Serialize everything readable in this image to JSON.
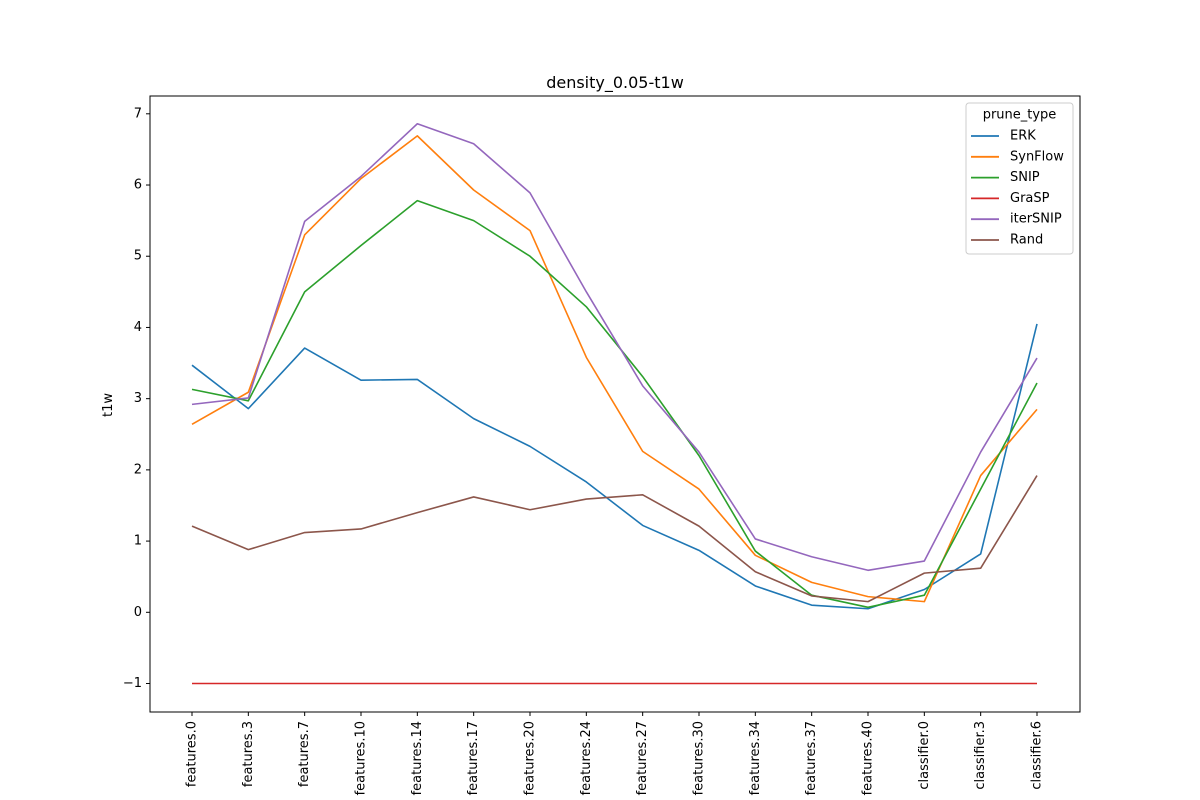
{
  "chart_data": {
    "type": "line",
    "title": "density_0.05-t1w",
    "xlabel": "",
    "ylabel": "t1w",
    "categories": [
      "features.0",
      "features.3",
      "features.7",
      "features.10",
      "features.14",
      "features.17",
      "features.20",
      "features.24",
      "features.27",
      "features.30",
      "features.34",
      "features.37",
      "features.40",
      "classifier.0",
      "classifier.3",
      "classifier.6"
    ],
    "ylim": [
      -1.4,
      7.25
    ],
    "yticks": [
      -1,
      0,
      1,
      2,
      3,
      4,
      5,
      6,
      7
    ],
    "ytick_labels": [
      "−1",
      "0",
      "1",
      "2",
      "3",
      "4",
      "5",
      "6",
      "7"
    ],
    "grid": false,
    "legend": {
      "title": "prune_type",
      "position": "top-right"
    },
    "series": [
      {
        "name": "ERK",
        "color": "#1f77b4",
        "values": [
          3.47,
          2.86,
          3.71,
          3.26,
          3.27,
          2.72,
          2.33,
          1.83,
          1.22,
          0.87,
          0.37,
          0.1,
          0.05,
          0.32,
          0.82,
          4.05
        ]
      },
      {
        "name": "SynFlow",
        "color": "#ff7f0e",
        "values": [
          2.64,
          3.09,
          5.3,
          6.09,
          6.69,
          5.93,
          5.36,
          3.58,
          2.26,
          1.73,
          0.8,
          0.42,
          0.22,
          0.15,
          1.92,
          2.85
        ]
      },
      {
        "name": "SNIP",
        "color": "#2ca02c",
        "values": [
          3.13,
          2.97,
          4.5,
          5.15,
          5.78,
          5.5,
          5.0,
          4.29,
          3.31,
          2.2,
          0.86,
          0.24,
          0.07,
          0.24,
          1.73,
          3.22
        ]
      },
      {
        "name": "GraSP",
        "color": "#d62728",
        "values": [
          -1,
          -1,
          -1,
          -1,
          -1,
          -1,
          -1,
          -1,
          -1,
          -1,
          -1,
          -1,
          -1,
          -1,
          -1,
          -1
        ]
      },
      {
        "name": "iterSNIP",
        "color": "#9467bd",
        "values": [
          2.92,
          3.01,
          5.49,
          6.12,
          6.86,
          6.58,
          5.89,
          4.5,
          3.18,
          2.25,
          1.03,
          0.78,
          0.59,
          0.72,
          2.25,
          3.57
        ]
      },
      {
        "name": "Rand",
        "color": "#8c564b",
        "values": [
          1.21,
          0.88,
          1.12,
          1.17,
          1.4,
          1.62,
          1.44,
          1.59,
          1.65,
          1.21,
          0.57,
          0.23,
          0.15,
          0.55,
          0.62,
          1.92
        ]
      }
    ]
  }
}
